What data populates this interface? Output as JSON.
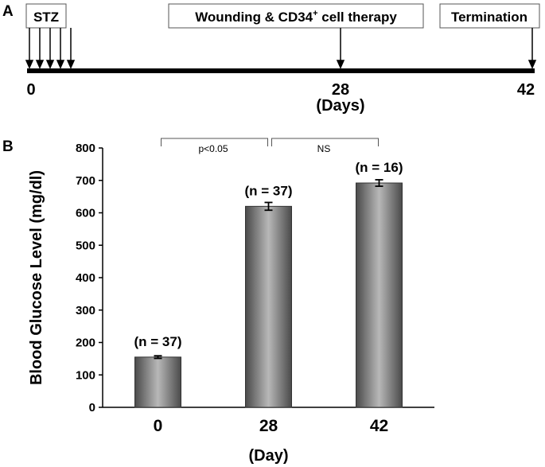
{
  "panel_a": {
    "letter": "A",
    "boxes": {
      "stz": "STZ",
      "wounding": "Wounding & CD34",
      "wounding_sup": "+",
      "wounding_tail": " cell therapy",
      "termination": "Termination"
    },
    "timeline": {
      "start": "0",
      "mid": "28",
      "end": "42",
      "unit": "(Days)"
    }
  },
  "panel_b": {
    "letter": "B"
  },
  "chart_data": {
    "type": "bar",
    "categories": [
      "0",
      "28",
      "42"
    ],
    "values": [
      155,
      620,
      692
    ],
    "errors": [
      4,
      12,
      10
    ],
    "annotations": [
      "(n = 37)",
      "(n = 37)",
      "(n = 16)"
    ],
    "ylabel": "Blood Glucose Level (mg/dl)",
    "xlabel": "(Day)",
    "ylim": [
      0,
      800
    ],
    "yticks": [
      "0",
      "100",
      "200",
      "300",
      "400",
      "500",
      "600",
      "700",
      "800"
    ],
    "significance": [
      {
        "from": 0,
        "to": 1,
        "label": "p<0.05"
      },
      {
        "from": 1,
        "to": 2,
        "label": "NS"
      }
    ],
    "grid": false,
    "bar_color": "#8a8a8a"
  }
}
